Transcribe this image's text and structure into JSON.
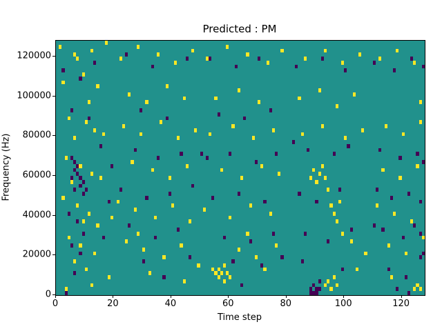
{
  "chart_data": {
    "type": "heatmap",
    "title": "Predicted : PM",
    "xlabel": "Time step",
    "ylabel": "Frequency (Hz)",
    "xlim": [
      0,
      128
    ],
    "ylim": [
      0,
      128000
    ],
    "x_ticks": [
      0,
      20,
      40,
      60,
      80,
      100,
      120
    ],
    "y_ticks": [
      0,
      20000,
      40000,
      60000,
      80000,
      100000,
      120000
    ],
    "grid": false,
    "legend": "none",
    "cell_width_steps": 1,
    "cell_height_hz": 2000,
    "colors": {
      "background": "#21918c",
      "high": "#fde725",
      "low": "#440154",
      "axes": "#000000"
    },
    "yellow_cells": [
      [
        1,
        124000
      ],
      [
        6,
        120000
      ],
      [
        7,
        118000
      ],
      [
        12,
        122000
      ],
      [
        17,
        126000
      ],
      [
        2,
        106000
      ],
      [
        9,
        110000
      ],
      [
        14,
        104000
      ],
      [
        11,
        96000
      ],
      [
        4,
        88000
      ],
      [
        10,
        86000
      ],
      [
        13,
        82000
      ],
      [
        6,
        78000
      ],
      [
        16,
        80000
      ],
      [
        3,
        68000
      ],
      [
        8,
        64000
      ],
      [
        12,
        60000
      ],
      [
        5,
        56000
      ],
      [
        15,
        58000
      ],
      [
        2,
        48000
      ],
      [
        7,
        44000
      ],
      [
        11,
        40000
      ],
      [
        9,
        36000
      ],
      [
        14,
        34000
      ],
      [
        4,
        28000
      ],
      [
        8,
        24000
      ],
      [
        13,
        20000
      ],
      [
        6,
        16000
      ],
      [
        10,
        12000
      ],
      [
        12,
        4000
      ],
      [
        3,
        2000
      ],
      [
        18,
        8000
      ],
      [
        19,
        38000
      ],
      [
        22,
        118000
      ],
      [
        28,
        124000
      ],
      [
        35,
        120000
      ],
      [
        41,
        116000
      ],
      [
        47,
        122000
      ],
      [
        25,
        100000
      ],
      [
        31,
        96000
      ],
      [
        38,
        104000
      ],
      [
        44,
        98000
      ],
      [
        23,
        84000
      ],
      [
        29,
        80000
      ],
      [
        36,
        86000
      ],
      [
        42,
        78000
      ],
      [
        48,
        82000
      ],
      [
        26,
        66000
      ],
      [
        33,
        62000
      ],
      [
        39,
        58000
      ],
      [
        45,
        64000
      ],
      [
        21,
        46000
      ],
      [
        27,
        42000
      ],
      [
        34,
        38000
      ],
      [
        40,
        44000
      ],
      [
        46,
        36000
      ],
      [
        24,
        26000
      ],
      [
        30,
        22000
      ],
      [
        37,
        18000
      ],
      [
        43,
        24000
      ],
      [
        49,
        14000
      ],
      [
        28,
        30000
      ],
      [
        32,
        10000
      ],
      [
        44,
        6000
      ],
      [
        54,
        12000
      ],
      [
        55,
        10000
      ],
      [
        56,
        8000
      ],
      [
        56,
        12000
      ],
      [
        57,
        10000
      ],
      [
        58,
        6000
      ],
      [
        58,
        14000
      ],
      [
        59,
        10000
      ],
      [
        60,
        8000
      ],
      [
        52,
        118000
      ],
      [
        59,
        124000
      ],
      [
        66,
        120000
      ],
      [
        73,
        116000
      ],
      [
        78,
        122000
      ],
      [
        55,
        98000
      ],
      [
        63,
        102000
      ],
      [
        70,
        96000
      ],
      [
        53,
        80000
      ],
      [
        61,
        84000
      ],
      [
        68,
        78000
      ],
      [
        75,
        82000
      ],
      [
        57,
        62000
      ],
      [
        64,
        58000
      ],
      [
        71,
        64000
      ],
      [
        77,
        60000
      ],
      [
        51,
        42000
      ],
      [
        60,
        38000
      ],
      [
        67,
        44000
      ],
      [
        74,
        40000
      ],
      [
        63,
        22000
      ],
      [
        69,
        18000
      ],
      [
        76,
        24000
      ],
      [
        66,
        30000
      ],
      [
        72,
        12000
      ],
      [
        86,
        118000
      ],
      [
        93,
        122000
      ],
      [
        99,
        116000
      ],
      [
        105,
        120000
      ],
      [
        84,
        98000
      ],
      [
        91,
        102000
      ],
      [
        97,
        94000
      ],
      [
        103,
        100000
      ],
      [
        88,
        58000
      ],
      [
        89,
        62000
      ],
      [
        90,
        56000
      ],
      [
        91,
        60000
      ],
      [
        92,
        64000
      ],
      [
        93,
        58000
      ],
      [
        94,
        52000
      ],
      [
        95,
        44000
      ],
      [
        96,
        40000
      ],
      [
        97,
        36000
      ],
      [
        98,
        46000
      ],
      [
        99,
        30000
      ],
      [
        93,
        4000
      ],
      [
        94,
        6000
      ],
      [
        95,
        2000
      ],
      [
        96,
        8000
      ],
      [
        97,
        4000
      ],
      [
        85,
        80000
      ],
      [
        92,
        84000
      ],
      [
        100,
        78000
      ],
      [
        106,
        82000
      ],
      [
        102,
        26000
      ],
      [
        107,
        20000
      ],
      [
        104,
        12000
      ],
      [
        112,
        118000
      ],
      [
        118,
        122000
      ],
      [
        124,
        116000
      ],
      [
        126,
        96000
      ],
      [
        114,
        84000
      ],
      [
        120,
        80000
      ],
      [
        126,
        86000
      ],
      [
        113,
        62000
      ],
      [
        119,
        58000
      ],
      [
        125,
        64000
      ],
      [
        111,
        44000
      ],
      [
        117,
        40000
      ],
      [
        123,
        36000
      ],
      [
        115,
        24000
      ],
      [
        121,
        20000
      ],
      [
        127,
        28000
      ],
      [
        124,
        2000
      ],
      [
        125,
        4000
      ],
      [
        126,
        2000
      ],
      [
        116,
        8000
      ]
    ],
    "purple_cells": [
      [
        5,
        68000
      ],
      [
        6,
        66000
      ],
      [
        6,
        62000
      ],
      [
        7,
        64000
      ],
      [
        7,
        60000
      ],
      [
        8,
        58000
      ],
      [
        8,
        54000
      ],
      [
        9,
        56000
      ],
      [
        9,
        50000
      ],
      [
        10,
        52000
      ],
      [
        5,
        58000
      ],
      [
        6,
        52000
      ],
      [
        4,
        40000
      ],
      [
        7,
        36000
      ],
      [
        9,
        30000
      ],
      [
        5,
        24000
      ],
      [
        8,
        20000
      ],
      [
        6,
        10000
      ],
      [
        3,
        0
      ],
      [
        2,
        112000
      ],
      [
        8,
        108000
      ],
      [
        13,
        116000
      ],
      [
        5,
        92000
      ],
      [
        11,
        88000
      ],
      [
        15,
        74000
      ],
      [
        19,
        64000
      ],
      [
        18,
        46000
      ],
      [
        16,
        28000
      ],
      [
        24,
        120000
      ],
      [
        33,
        114000
      ],
      [
        45,
        118000
      ],
      [
        29,
        92000
      ],
      [
        38,
        88000
      ],
      [
        27,
        72000
      ],
      [
        35,
        68000
      ],
      [
        43,
        70000
      ],
      [
        22,
        52000
      ],
      [
        31,
        48000
      ],
      [
        39,
        50000
      ],
      [
        47,
        54000
      ],
      [
        25,
        34000
      ],
      [
        34,
        28000
      ],
      [
        42,
        32000
      ],
      [
        30,
        16000
      ],
      [
        46,
        18000
      ],
      [
        37,
        8000
      ],
      [
        50,
        70000
      ],
      [
        53,
        118000
      ],
      [
        62,
        114000
      ],
      [
        70,
        118000
      ],
      [
        56,
        90000
      ],
      [
        65,
        88000
      ],
      [
        74,
        92000
      ],
      [
        52,
        68000
      ],
      [
        60,
        70000
      ],
      [
        69,
        66000
      ],
      [
        76,
        70000
      ],
      [
        54,
        48000
      ],
      [
        63,
        50000
      ],
      [
        72,
        46000
      ],
      [
        58,
        28000
      ],
      [
        67,
        26000
      ],
      [
        75,
        30000
      ],
      [
        61,
        16000
      ],
      [
        71,
        14000
      ],
      [
        78,
        18000
      ],
      [
        64,
        4000
      ],
      [
        88,
        0
      ],
      [
        88,
        2000
      ],
      [
        89,
        0
      ],
      [
        89,
        4000
      ],
      [
        90,
        2000
      ],
      [
        90,
        0
      ],
      [
        91,
        2000
      ],
      [
        91,
        6000
      ],
      [
        82,
        76000
      ],
      [
        87,
        72000
      ],
      [
        96,
        70000
      ],
      [
        101,
        74000
      ],
      [
        84,
        50000
      ],
      [
        90,
        46000
      ],
      [
        98,
        52000
      ],
      [
        83,
        114000
      ],
      [
        92,
        118000
      ],
      [
        100,
        112000
      ],
      [
        86,
        30000
      ],
      [
        94,
        26000
      ],
      [
        102,
        32000
      ],
      [
        85,
        16000
      ],
      [
        99,
        12000
      ],
      [
        110,
        116000
      ],
      [
        117,
        112000
      ],
      [
        123,
        118000
      ],
      [
        127,
        114000
      ],
      [
        112,
        72000
      ],
      [
        119,
        68000
      ],
      [
        125,
        70000
      ],
      [
        127,
        66000
      ],
      [
        111,
        52000
      ],
      [
        116,
        48000
      ],
      [
        122,
        50000
      ],
      [
        126,
        46000
      ],
      [
        113,
        32000
      ],
      [
        120,
        28000
      ],
      [
        126,
        30000
      ],
      [
        124,
        34000
      ],
      [
        110,
        34000
      ],
      [
        115,
        12000
      ],
      [
        121,
        8000
      ],
      [
        118,
        2000
      ],
      [
        122,
        0
      ],
      [
        126,
        18000
      ],
      [
        127,
        20000
      ]
    ]
  }
}
